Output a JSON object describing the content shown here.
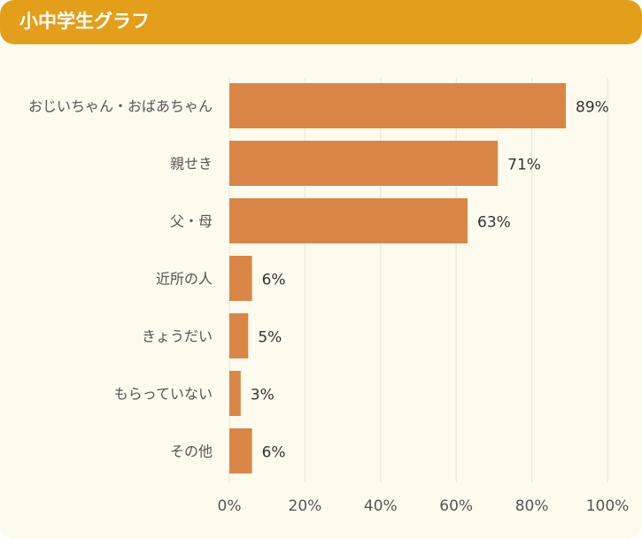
{
  "header": {
    "title": "小中学生グラフ"
  },
  "colors": {
    "header_bg": "#e39e1a",
    "bar": "#da8646",
    "card_bg": "#fdfbee",
    "grid": "#e6e4d8"
  },
  "chart_data": {
    "type": "bar",
    "orientation": "horizontal",
    "categories": [
      "おじいちゃん・おばあちゃん",
      "親せき",
      "父・母",
      "近所の人",
      "きょうだい",
      "もらっていない",
      "その他"
    ],
    "values": [
      89,
      71,
      63,
      6,
      5,
      3,
      6
    ],
    "value_labels": [
      "89%",
      "71%",
      "63%",
      "6%",
      "5%",
      "3%",
      "6%"
    ],
    "x_ticks": [
      "0%",
      "20%",
      "40%",
      "60%",
      "80%",
      "100%"
    ],
    "xlim": [
      0,
      100
    ],
    "grid": true,
    "title": "",
    "xlabel": "",
    "ylabel": ""
  }
}
